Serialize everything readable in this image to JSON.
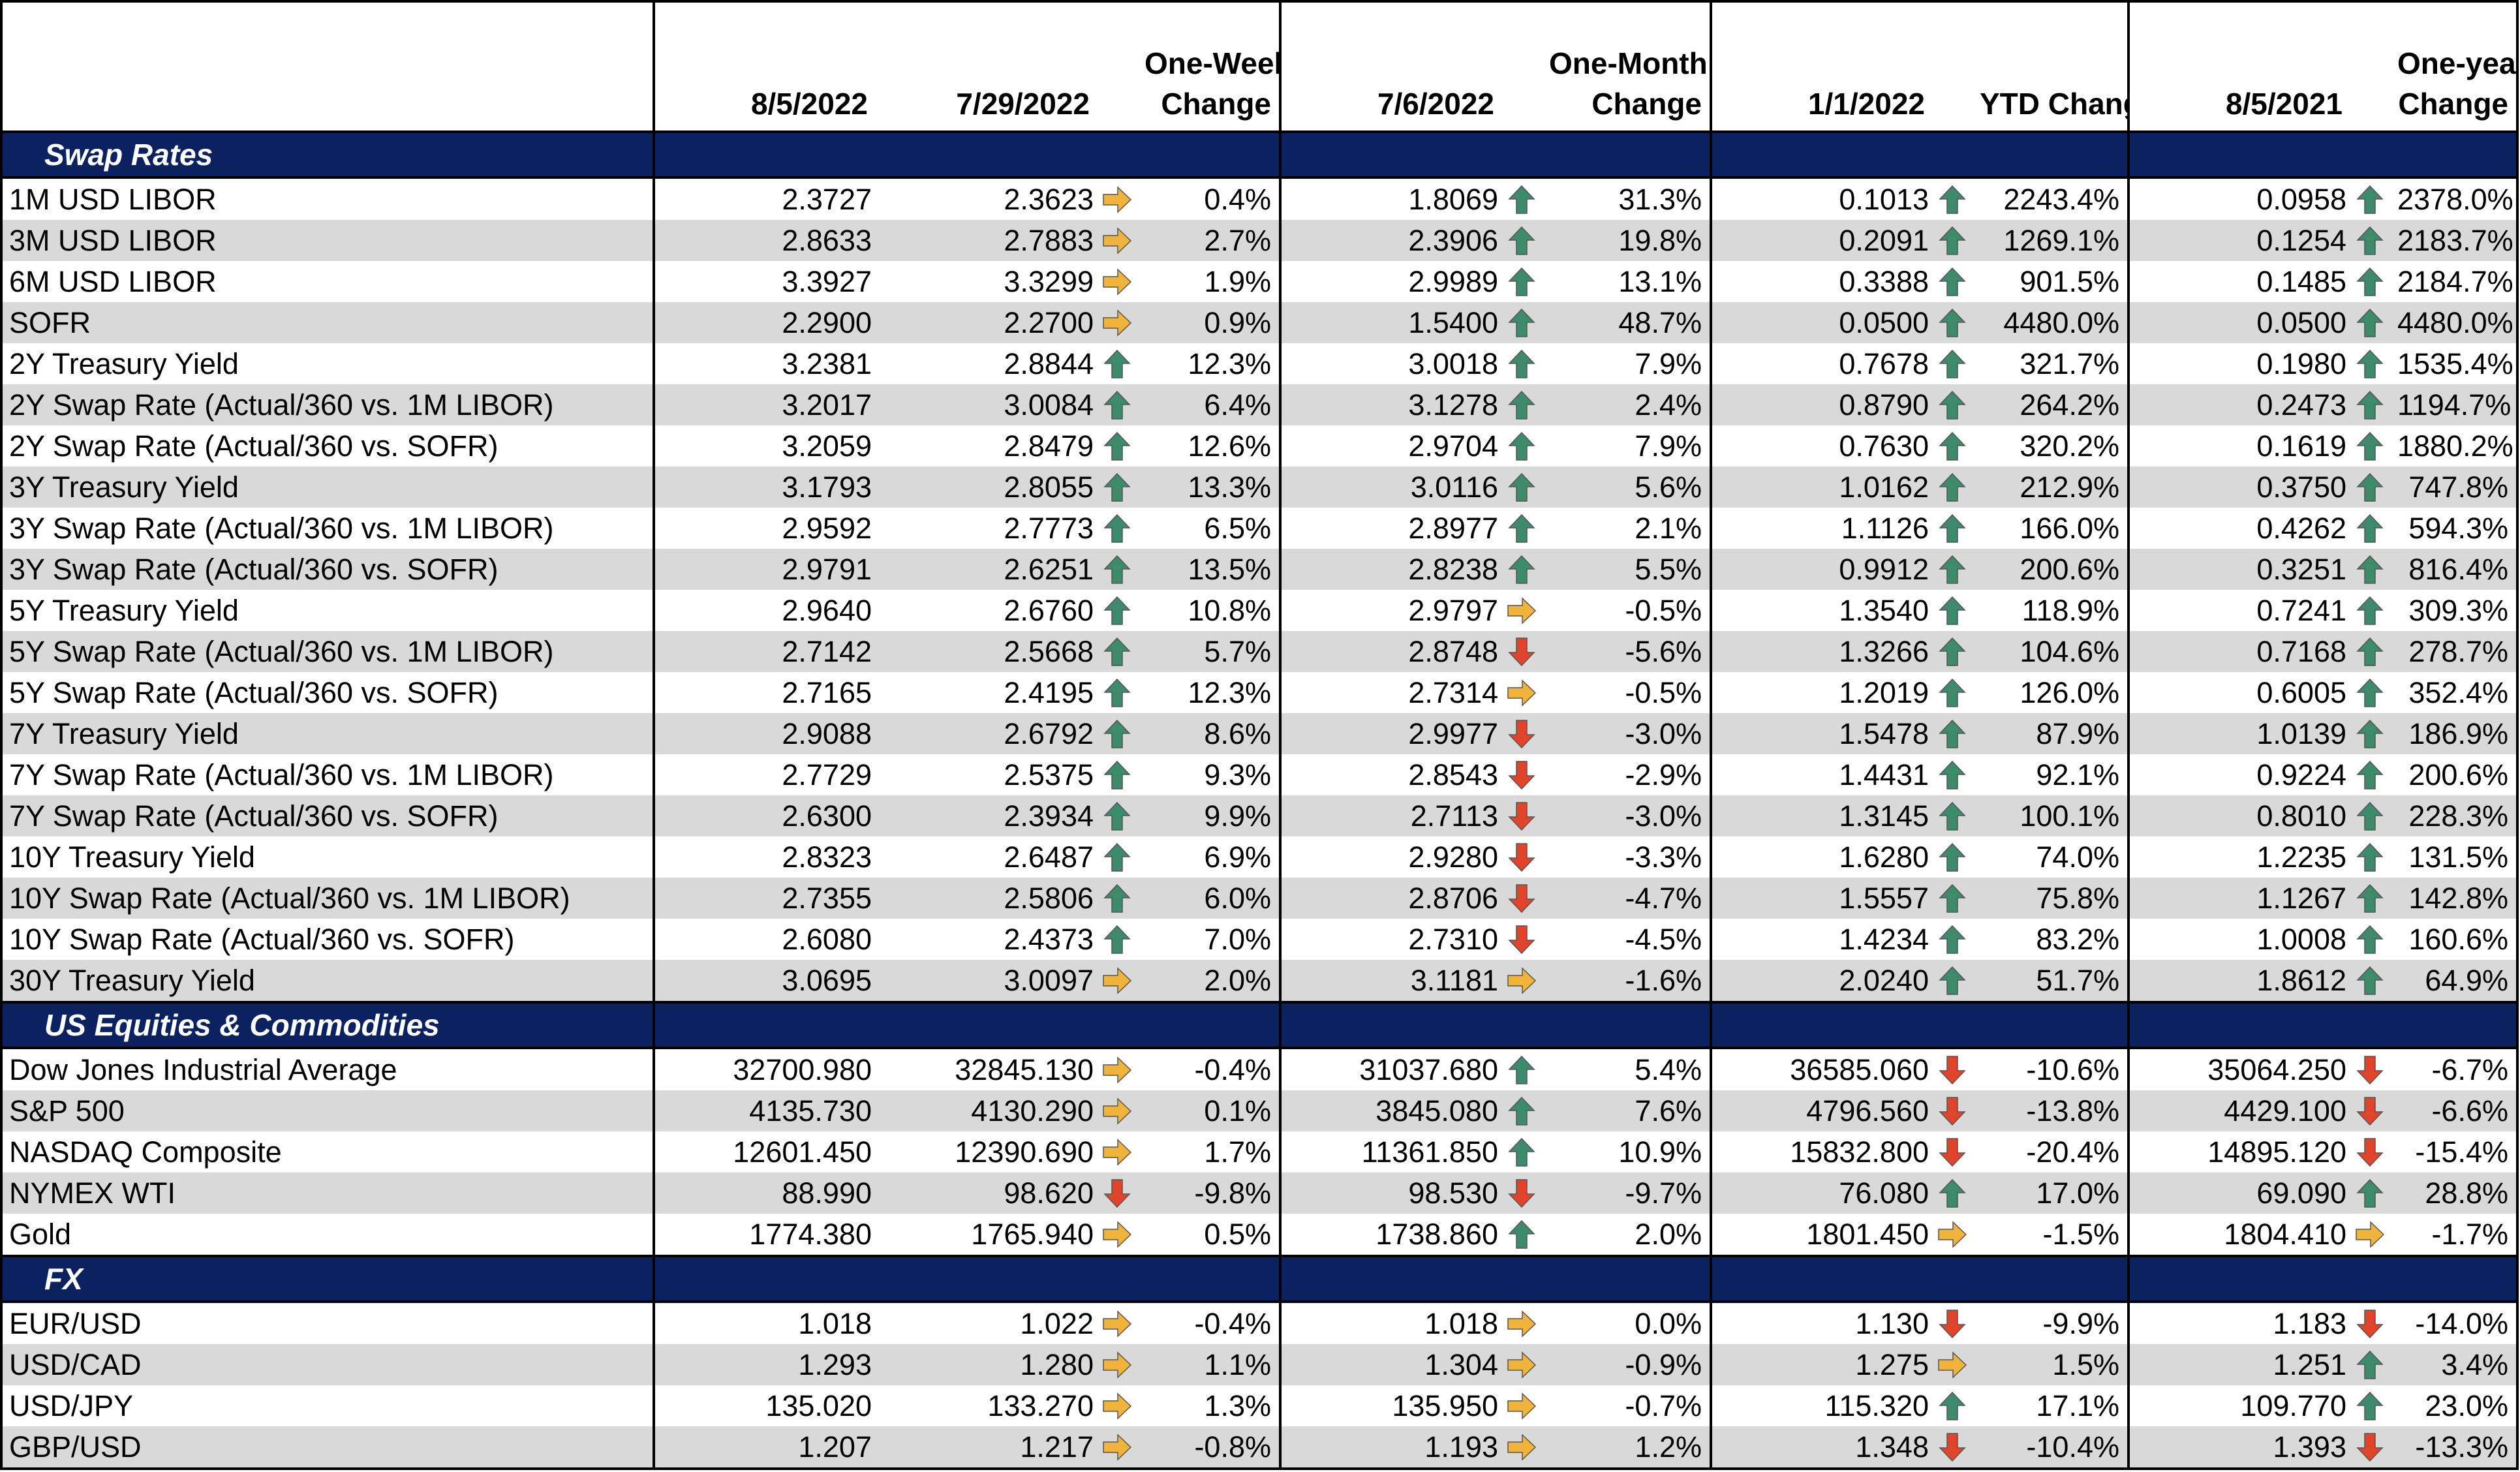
{
  "headers": {
    "c1": "8/5/2022",
    "c2": "7/29/2022",
    "c3a": "One-Week",
    "c3b": "Change",
    "c4": "7/6/2022",
    "c5a": "One-Month",
    "c5b": "Change",
    "c6": "1/1/2022",
    "c7": "YTD Change",
    "c8": "8/5/2021",
    "c9a": "One-year",
    "c9b": "Change"
  },
  "colors": {
    "section_bg": "#0c2260",
    "alt_row": "#d9d9d9",
    "up": "#3e8a6c",
    "down": "#e0442a",
    "flat": "#f0b43c"
  },
  "sections": [
    {
      "title": "Swap Rates",
      "rows": [
        {
          "label": "1M USD LIBOR",
          "v1": "2.3727",
          "v2": "2.3623",
          "a2": "flat",
          "p1": "0.4%",
          "v3": "1.8069",
          "a3": "up",
          "p2": "31.3%",
          "v4": "0.1013",
          "a4": "up",
          "p3": "2243.4%",
          "v5": "0.0958",
          "a5": "up",
          "p4": "2378.0%"
        },
        {
          "label": "3M USD LIBOR",
          "v1": "2.8633",
          "v2": "2.7883",
          "a2": "flat",
          "p1": "2.7%",
          "v3": "2.3906",
          "a3": "up",
          "p2": "19.8%",
          "v4": "0.2091",
          "a4": "up",
          "p3": "1269.1%",
          "v5": "0.1254",
          "a5": "up",
          "p4": "2183.7%"
        },
        {
          "label": "6M USD LIBOR",
          "v1": "3.3927",
          "v2": "3.3299",
          "a2": "flat",
          "p1": "1.9%",
          "v3": "2.9989",
          "a3": "up",
          "p2": "13.1%",
          "v4": "0.3388",
          "a4": "up",
          "p3": "901.5%",
          "v5": "0.1485",
          "a5": "up",
          "p4": "2184.7%"
        },
        {
          "label": "SOFR",
          "v1": "2.2900",
          "v2": "2.2700",
          "a2": "flat",
          "p1": "0.9%",
          "v3": "1.5400",
          "a3": "up",
          "p2": "48.7%",
          "v4": "0.0500",
          "a4": "up",
          "p3": "4480.0%",
          "v5": "0.0500",
          "a5": "up",
          "p4": "4480.0%"
        },
        {
          "label": "2Y Treasury Yield",
          "v1": "3.2381",
          "v2": "2.8844",
          "a2": "up",
          "p1": "12.3%",
          "v3": "3.0018",
          "a3": "up",
          "p2": "7.9%",
          "v4": "0.7678",
          "a4": "up",
          "p3": "321.7%",
          "v5": "0.1980",
          "a5": "up",
          "p4": "1535.4%"
        },
        {
          "label": "2Y Swap Rate (Actual/360 vs. 1M LIBOR)",
          "v1": "3.2017",
          "v2": "3.0084",
          "a2": "up",
          "p1": "6.4%",
          "v3": "3.1278",
          "a3": "up",
          "p2": "2.4%",
          "v4": "0.8790",
          "a4": "up",
          "p3": "264.2%",
          "v5": "0.2473",
          "a5": "up",
          "p4": "1194.7%"
        },
        {
          "label": "2Y Swap Rate (Actual/360 vs. SOFR)",
          "v1": "3.2059",
          "v2": "2.8479",
          "a2": "up",
          "p1": "12.6%",
          "v3": "2.9704",
          "a3": "up",
          "p2": "7.9%",
          "v4": "0.7630",
          "a4": "up",
          "p3": "320.2%",
          "v5": "0.1619",
          "a5": "up",
          "p4": "1880.2%"
        },
        {
          "label": "3Y Treasury Yield",
          "v1": "3.1793",
          "v2": "2.8055",
          "a2": "up",
          "p1": "13.3%",
          "v3": "3.0116",
          "a3": "up",
          "p2": "5.6%",
          "v4": "1.0162",
          "a4": "up",
          "p3": "212.9%",
          "v5": "0.3750",
          "a5": "up",
          "p4": "747.8%"
        },
        {
          "label": "3Y Swap Rate (Actual/360 vs. 1M LIBOR)",
          "v1": "2.9592",
          "v2": "2.7773",
          "a2": "up",
          "p1": "6.5%",
          "v3": "2.8977",
          "a3": "up",
          "p2": "2.1%",
          "v4": "1.1126",
          "a4": "up",
          "p3": "166.0%",
          "v5": "0.4262",
          "a5": "up",
          "p4": "594.3%"
        },
        {
          "label": "3Y Swap Rate (Actual/360 vs. SOFR)",
          "v1": "2.9791",
          "v2": "2.6251",
          "a2": "up",
          "p1": "13.5%",
          "v3": "2.8238",
          "a3": "up",
          "p2": "5.5%",
          "v4": "0.9912",
          "a4": "up",
          "p3": "200.6%",
          "v5": "0.3251",
          "a5": "up",
          "p4": "816.4%"
        },
        {
          "label": "5Y Treasury Yield",
          "v1": "2.9640",
          "v2": "2.6760",
          "a2": "up",
          "p1": "10.8%",
          "v3": "2.9797",
          "a3": "flat",
          "p2": "-0.5%",
          "v4": "1.3540",
          "a4": "up",
          "p3": "118.9%",
          "v5": "0.7241",
          "a5": "up",
          "p4": "309.3%"
        },
        {
          "label": "5Y Swap Rate (Actual/360 vs. 1M LIBOR)",
          "v1": "2.7142",
          "v2": "2.5668",
          "a2": "up",
          "p1": "5.7%",
          "v3": "2.8748",
          "a3": "down",
          "p2": "-5.6%",
          "v4": "1.3266",
          "a4": "up",
          "p3": "104.6%",
          "v5": "0.7168",
          "a5": "up",
          "p4": "278.7%"
        },
        {
          "label": "5Y Swap Rate (Actual/360 vs. SOFR)",
          "v1": "2.7165",
          "v2": "2.4195",
          "a2": "up",
          "p1": "12.3%",
          "v3": "2.7314",
          "a3": "flat",
          "p2": "-0.5%",
          "v4": "1.2019",
          "a4": "up",
          "p3": "126.0%",
          "v5": "0.6005",
          "a5": "up",
          "p4": "352.4%"
        },
        {
          "label": "7Y Treasury Yield",
          "v1": "2.9088",
          "v2": "2.6792",
          "a2": "up",
          "p1": "8.6%",
          "v3": "2.9977",
          "a3": "down",
          "p2": "-3.0%",
          "v4": "1.5478",
          "a4": "up",
          "p3": "87.9%",
          "v5": "1.0139",
          "a5": "up",
          "p4": "186.9%"
        },
        {
          "label": "7Y Swap Rate (Actual/360 vs. 1M LIBOR)",
          "v1": "2.7729",
          "v2": "2.5375",
          "a2": "up",
          "p1": "9.3%",
          "v3": "2.8543",
          "a3": "down",
          "p2": "-2.9%",
          "v4": "1.4431",
          "a4": "up",
          "p3": "92.1%",
          "v5": "0.9224",
          "a5": "up",
          "p4": "200.6%"
        },
        {
          "label": "7Y Swap Rate (Actual/360 vs. SOFR)",
          "v1": "2.6300",
          "v2": "2.3934",
          "a2": "up",
          "p1": "9.9%",
          "v3": "2.7113",
          "a3": "down",
          "p2": "-3.0%",
          "v4": "1.3145",
          "a4": "up",
          "p3": "100.1%",
          "v5": "0.8010",
          "a5": "up",
          "p4": "228.3%"
        },
        {
          "label": "10Y Treasury Yield",
          "v1": "2.8323",
          "v2": "2.6487",
          "a2": "up",
          "p1": "6.9%",
          "v3": "2.9280",
          "a3": "down",
          "p2": "-3.3%",
          "v4": "1.6280",
          "a4": "up",
          "p3": "74.0%",
          "v5": "1.2235",
          "a5": "up",
          "p4": "131.5%"
        },
        {
          "label": "10Y Swap Rate (Actual/360 vs. 1M LIBOR)",
          "v1": "2.7355",
          "v2": "2.5806",
          "a2": "up",
          "p1": "6.0%",
          "v3": "2.8706",
          "a3": "down",
          "p2": "-4.7%",
          "v4": "1.5557",
          "a4": "up",
          "p3": "75.8%",
          "v5": "1.1267",
          "a5": "up",
          "p4": "142.8%"
        },
        {
          "label": "10Y Swap Rate (Actual/360 vs. SOFR)",
          "v1": "2.6080",
          "v2": "2.4373",
          "a2": "up",
          "p1": "7.0%",
          "v3": "2.7310",
          "a3": "down",
          "p2": "-4.5%",
          "v4": "1.4234",
          "a4": "up",
          "p3": "83.2%",
          "v5": "1.0008",
          "a5": "up",
          "p4": "160.6%"
        },
        {
          "label": "30Y Treasury Yield",
          "v1": "3.0695",
          "v2": "3.0097",
          "a2": "flat",
          "p1": "2.0%",
          "v3": "3.1181",
          "a3": "flat",
          "p2": "-1.6%",
          "v4": "2.0240",
          "a4": "up",
          "p3": "51.7%",
          "v5": "1.8612",
          "a5": "up",
          "p4": "64.9%"
        }
      ]
    },
    {
      "title": "US Equities & Commodities",
      "rows": [
        {
          "label": "Dow Jones Industrial Average",
          "v1": "32700.980",
          "v2": "32845.130",
          "a2": "flat",
          "p1": "-0.4%",
          "v3": "31037.680",
          "a3": "up",
          "p2": "5.4%",
          "v4": "36585.060",
          "a4": "down",
          "p3": "-10.6%",
          "v5": "35064.250",
          "a5": "down",
          "p4": "-6.7%"
        },
        {
          "label": "S&P 500",
          "v1": "4135.730",
          "v2": "4130.290",
          "a2": "flat",
          "p1": "0.1%",
          "v3": "3845.080",
          "a3": "up",
          "p2": "7.6%",
          "v4": "4796.560",
          "a4": "down",
          "p3": "-13.8%",
          "v5": "4429.100",
          "a5": "down",
          "p4": "-6.6%"
        },
        {
          "label": "NASDAQ Composite",
          "v1": "12601.450",
          "v2": "12390.690",
          "a2": "flat",
          "p1": "1.7%",
          "v3": "11361.850",
          "a3": "up",
          "p2": "10.9%",
          "v4": "15832.800",
          "a4": "down",
          "p3": "-20.4%",
          "v5": "14895.120",
          "a5": "down",
          "p4": "-15.4%"
        },
        {
          "label": "NYMEX WTI",
          "v1": "88.990",
          "v2": "98.620",
          "a2": "down",
          "p1": "-9.8%",
          "v3": "98.530",
          "a3": "down",
          "p2": "-9.7%",
          "v4": "76.080",
          "a4": "up",
          "p3": "17.0%",
          "v5": "69.090",
          "a5": "up",
          "p4": "28.8%"
        },
        {
          "label": "Gold",
          "v1": "1774.380",
          "v2": "1765.940",
          "a2": "flat",
          "p1": "0.5%",
          "v3": "1738.860",
          "a3": "up",
          "p2": "2.0%",
          "v4": "1801.450",
          "a4": "flat",
          "p3": "-1.5%",
          "v5": "1804.410",
          "a5": "flat",
          "p4": "-1.7%"
        }
      ]
    },
    {
      "title": "FX",
      "rows": [
        {
          "label": "EUR/USD",
          "v1": "1.018",
          "v2": "1.022",
          "a2": "flat",
          "p1": "-0.4%",
          "v3": "1.018",
          "a3": "flat",
          "p2": "0.0%",
          "v4": "1.130",
          "a4": "down",
          "p3": "-9.9%",
          "v5": "1.183",
          "a5": "down",
          "p4": "-14.0%"
        },
        {
          "label": "USD/CAD",
          "v1": "1.293",
          "v2": "1.280",
          "a2": "flat",
          "p1": "1.1%",
          "v3": "1.304",
          "a3": "flat",
          "p2": "-0.9%",
          "v4": "1.275",
          "a4": "flat",
          "p3": "1.5%",
          "v5": "1.251",
          "a5": "up",
          "p4": "3.4%"
        },
        {
          "label": "USD/JPY",
          "v1": "135.020",
          "v2": "133.270",
          "a2": "flat",
          "p1": "1.3%",
          "v3": "135.950",
          "a3": "flat",
          "p2": "-0.7%",
          "v4": "115.320",
          "a4": "up",
          "p3": "17.1%",
          "v5": "109.770",
          "a5": "up",
          "p4": "23.0%"
        },
        {
          "label": "GBP/USD",
          "v1": "1.207",
          "v2": "1.217",
          "a2": "flat",
          "p1": "-0.8%",
          "v3": "1.193",
          "a3": "flat",
          "p2": "1.2%",
          "v4": "1.348",
          "a4": "down",
          "p3": "-10.4%",
          "v5": "1.393",
          "a5": "down",
          "p4": "-13.3%"
        }
      ]
    }
  ]
}
